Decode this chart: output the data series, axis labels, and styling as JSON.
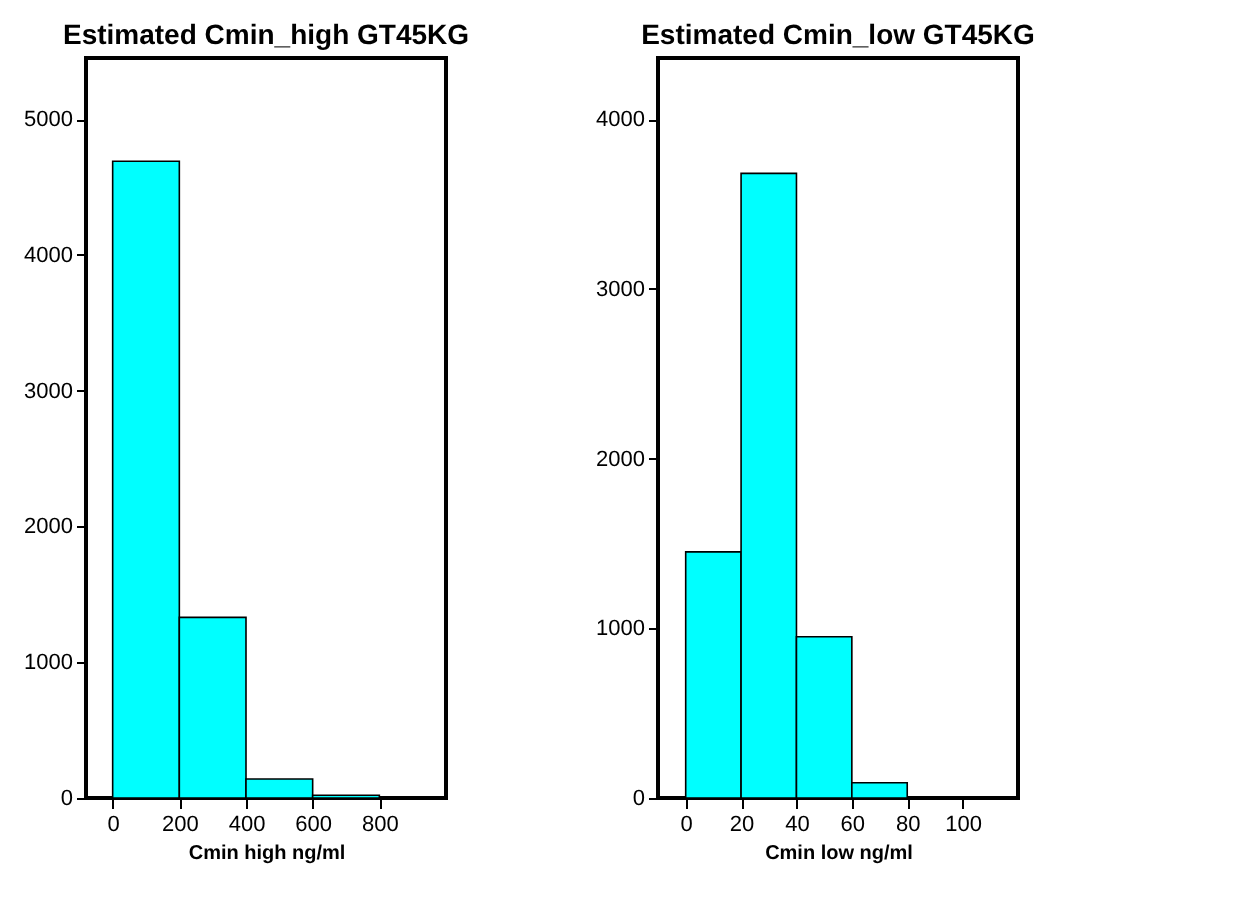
{
  "chart_data": [
    {
      "type": "histogram",
      "title": "Estimated Cmin_high GT45KG",
      "xlabel": "Cmin  high ng/ml",
      "bins": [
        0,
        200,
        400,
        600,
        800
      ],
      "values": [
        4690,
        1330,
        140,
        20
      ],
      "color": "#00ffff",
      "xlim": [
        -80,
        1000
      ],
      "xticks": [
        0,
        200,
        400,
        600,
        800
      ],
      "ylim": [
        0,
        5450
      ],
      "yticks": [
        0,
        1000,
        2000,
        3000,
        4000,
        5000
      ],
      "grid": false
    },
    {
      "type": "histogram",
      "title": "Estimated Cmin_low GT45KG",
      "xlabel": "Cmin  low ng/ml",
      "bins": [
        0,
        20,
        40,
        60,
        80
      ],
      "values": [
        1450,
        3680,
        950,
        90
      ],
      "color": "#00ffff",
      "xlim": [
        -10,
        120
      ],
      "xticks": [
        0,
        20,
        40,
        60,
        80,
        100
      ],
      "ylim": [
        0,
        4360
      ],
      "yticks": [
        0,
        1000,
        2000,
        3000,
        4000
      ],
      "grid": false
    }
  ]
}
